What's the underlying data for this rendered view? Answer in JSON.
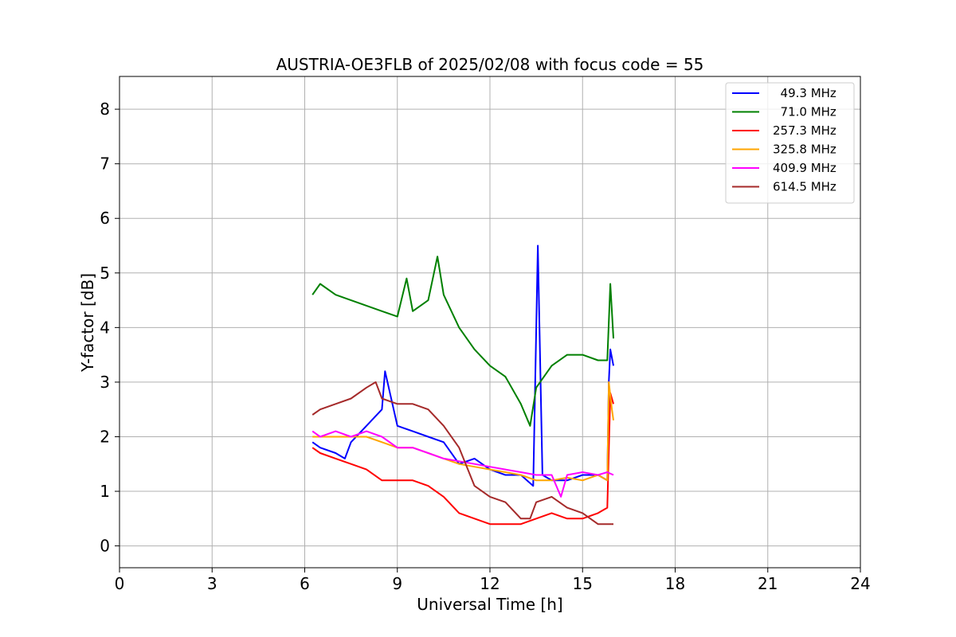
{
  "chart_data": {
    "type": "line",
    "title": "AUSTRIA-OE3FLB of 2025/02/08 with focus code = 55",
    "xlabel": "Universal Time [h]",
    "ylabel": "Y-factor [dB]",
    "xlim": [
      0,
      24
    ],
    "ylim": [
      -0.4,
      8.6
    ],
    "xticks": [
      0,
      3,
      6,
      9,
      12,
      15,
      18,
      21,
      24
    ],
    "yticks": [
      0,
      1,
      2,
      3,
      4,
      5,
      6,
      7,
      8
    ],
    "grid": true,
    "legend_position": "top-right",
    "series": [
      {
        "name": "  49.3 MHz",
        "color": "#0000ff",
        "x": [
          6.25,
          6.5,
          7.0,
          7.3,
          7.5,
          8.0,
          8.5,
          8.6,
          9.0,
          9.5,
          10.0,
          10.5,
          11.0,
          11.5,
          12.0,
          12.5,
          13.0,
          13.4,
          13.55,
          13.7,
          14.0,
          14.5,
          15.0,
          15.5,
          15.8,
          15.85,
          15.9,
          16.0
        ],
        "y": [
          1.9,
          1.8,
          1.7,
          1.6,
          1.9,
          2.2,
          2.5,
          3.2,
          2.2,
          2.1,
          2.0,
          1.9,
          1.5,
          1.6,
          1.4,
          1.3,
          1.3,
          1.1,
          5.5,
          1.3,
          1.2,
          1.2,
          1.3,
          1.3,
          1.2,
          3.0,
          3.6,
          3.3
        ]
      },
      {
        "name": "  71.0 MHz",
        "color": "#008000",
        "x": [
          6.25,
          6.5,
          7.0,
          7.5,
          8.0,
          8.5,
          9.0,
          9.3,
          9.5,
          10.0,
          10.3,
          10.5,
          11.0,
          11.5,
          12.0,
          12.5,
          13.0,
          13.3,
          13.5,
          14.0,
          14.5,
          15.0,
          15.5,
          15.8,
          15.9,
          16.0
        ],
        "y": [
          4.6,
          4.8,
          4.6,
          4.5,
          4.4,
          4.3,
          4.2,
          4.9,
          4.3,
          4.5,
          5.3,
          4.6,
          4.0,
          3.6,
          3.3,
          3.1,
          2.6,
          2.2,
          2.9,
          3.3,
          3.5,
          3.5,
          3.4,
          3.4,
          4.8,
          3.8
        ]
      },
      {
        "name": "257.3 MHz",
        "color": "#ff0000",
        "x": [
          6.25,
          6.5,
          7.0,
          7.5,
          8.0,
          8.5,
          9.0,
          9.5,
          10.0,
          10.5,
          11.0,
          11.5,
          12.0,
          12.5,
          13.0,
          13.5,
          14.0,
          14.5,
          15.0,
          15.5,
          15.8,
          15.9,
          16.0
        ],
        "y": [
          1.8,
          1.7,
          1.6,
          1.5,
          1.4,
          1.2,
          1.2,
          1.2,
          1.1,
          0.9,
          0.6,
          0.5,
          0.4,
          0.4,
          0.4,
          0.5,
          0.6,
          0.5,
          0.5,
          0.6,
          0.7,
          2.8,
          2.6
        ]
      },
      {
        "name": "325.8 MHz",
        "color": "#ffa500",
        "x": [
          6.25,
          6.5,
          7.0,
          7.5,
          8.0,
          8.5,
          9.0,
          9.5,
          10.0,
          10.5,
          11.0,
          11.5,
          12.0,
          12.5,
          13.0,
          13.5,
          14.0,
          14.5,
          15.0,
          15.5,
          15.8,
          15.85,
          15.95,
          16.0
        ],
        "y": [
          2.0,
          2.0,
          2.0,
          2.0,
          2.0,
          1.9,
          1.8,
          1.8,
          1.7,
          1.6,
          1.5,
          1.45,
          1.4,
          1.35,
          1.3,
          1.2,
          1.2,
          1.25,
          1.2,
          1.3,
          1.2,
          3.0,
          2.5,
          2.3
        ]
      },
      {
        "name": "409.9 MHz",
        "color": "#ff00ff",
        "x": [
          6.25,
          6.5,
          7.0,
          7.5,
          8.0,
          8.5,
          9.0,
          9.5,
          10.0,
          10.5,
          11.0,
          11.5,
          12.0,
          12.5,
          13.0,
          13.5,
          14.0,
          14.3,
          14.5,
          15.0,
          15.5,
          15.8,
          16.0
        ],
        "y": [
          2.1,
          2.0,
          2.1,
          2.0,
          2.1,
          2.0,
          1.8,
          1.8,
          1.7,
          1.6,
          1.55,
          1.5,
          1.45,
          1.4,
          1.35,
          1.3,
          1.3,
          0.9,
          1.3,
          1.35,
          1.3,
          1.35,
          1.3
        ]
      },
      {
        "name": "614.5 MHz",
        "color": "#a52a2a",
        "x": [
          6.25,
          6.5,
          7.0,
          7.5,
          8.0,
          8.3,
          8.5,
          9.0,
          9.5,
          10.0,
          10.5,
          11.0,
          11.5,
          12.0,
          12.5,
          13.0,
          13.3,
          13.5,
          14.0,
          14.5,
          15.0,
          15.5,
          16.0
        ],
        "y": [
          2.4,
          2.5,
          2.6,
          2.7,
          2.9,
          3.0,
          2.7,
          2.6,
          2.6,
          2.5,
          2.2,
          1.8,
          1.1,
          0.9,
          0.8,
          0.5,
          0.5,
          0.8,
          0.9,
          0.7,
          0.6,
          0.4,
          0.4
        ]
      }
    ]
  }
}
